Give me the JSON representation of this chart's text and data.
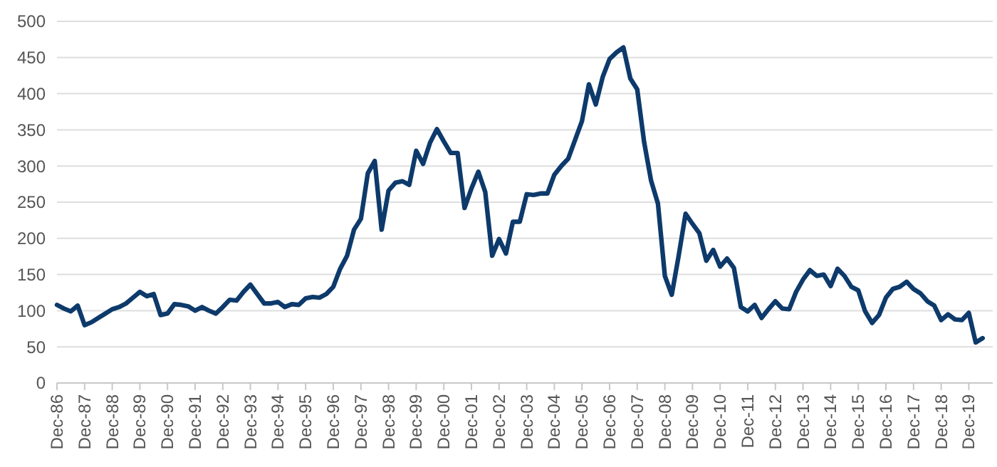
{
  "chart_data": {
    "type": "line",
    "categories": [
      "Dec-86",
      null,
      null,
      null,
      "Dec-87",
      null,
      null,
      null,
      "Dec-88",
      null,
      null,
      null,
      "Dec-89",
      null,
      null,
      null,
      "Dec-90",
      null,
      null,
      null,
      "Dec-91",
      null,
      null,
      null,
      "Dec-92",
      null,
      null,
      null,
      "Dec-93",
      null,
      null,
      null,
      "Dec-94",
      null,
      null,
      null,
      "Dec-95",
      null,
      null,
      null,
      "Dec-96",
      null,
      null,
      null,
      "Dec-97",
      null,
      null,
      null,
      "Dec-98",
      null,
      null,
      null,
      "Dec-99",
      null,
      null,
      null,
      "Dec-00",
      null,
      null,
      null,
      "Dec-01",
      null,
      null,
      null,
      "Dec-02",
      null,
      null,
      null,
      "Dec-03",
      null,
      null,
      null,
      "Dec-04",
      null,
      null,
      null,
      "Dec-05",
      null,
      null,
      null,
      "Dec-06",
      null,
      null,
      null,
      "Dec-07",
      null,
      null,
      null,
      "Dec-08",
      null,
      null,
      null,
      "Dec-09",
      null,
      null,
      null,
      "Dec-10",
      null,
      null,
      null,
      "Dec-11",
      null,
      null,
      null,
      "Dec-12",
      null,
      null,
      null,
      "Dec-13",
      null,
      null,
      null,
      "Dec-14",
      null,
      null,
      null,
      "Dec-15",
      null,
      null,
      null,
      "Dec-16",
      null,
      null,
      null,
      "Dec-17",
      null,
      null,
      null,
      "Dec-18",
      null,
      null,
      null,
      "Dec-19",
      null,
      null
    ],
    "series": [
      {
        "color": "#0d3a6b",
        "values": [
          108,
          103,
          99,
          107,
          80,
          84,
          90,
          96,
          102,
          105,
          110,
          118,
          126,
          120,
          123,
          94,
          96,
          109,
          108,
          106,
          100,
          105,
          100,
          96,
          105,
          115,
          114,
          126,
          136,
          123,
          110,
          110,
          112,
          105,
          109,
          108,
          117,
          119,
          118,
          123,
          133,
          158,
          176,
          212,
          227,
          290,
          307,
          212,
          266,
          277,
          279,
          274,
          321,
          303,
          332,
          351,
          334,
          318,
          318,
          242,
          269,
          292,
          264,
          176,
          199,
          179,
          223,
          223,
          261,
          260,
          262,
          262,
          288,
          300,
          310,
          336,
          362,
          413,
          385,
          423,
          448,
          457,
          464,
          421,
          406,
          333,
          280,
          248,
          148,
          122,
          176,
          234,
          220,
          207,
          169,
          184,
          161,
          172,
          159,
          105,
          99,
          108,
          90,
          102,
          113,
          103,
          102,
          126,
          143,
          156,
          148,
          150,
          134,
          158,
          148,
          133,
          128,
          99,
          83,
          94,
          118,
          130,
          133,
          140,
          130,
          124,
          113,
          107,
          87,
          95,
          88,
          87,
          97,
          56,
          62
        ]
      }
    ],
    "ylim": [
      0,
      500
    ],
    "yticks": [
      0,
      50,
      100,
      150,
      200,
      250,
      300,
      350,
      400,
      450,
      500
    ],
    "grid": "y",
    "marker": "none",
    "line_style": "solid"
  }
}
